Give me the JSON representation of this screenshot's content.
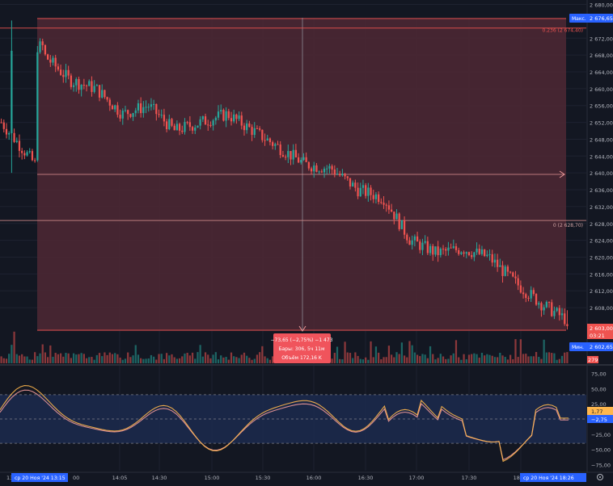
{
  "price_axis": {
    "ticks": [
      "2 680,00",
      "2 672,00",
      "2 668,00",
      "2 664,00",
      "2 660,00",
      "2 656,00",
      "2 652,00",
      "2 648,00",
      "2 644,00",
      "2 640,00",
      "2 636,00",
      "2 632,00",
      "2 628,00",
      "2 624,00",
      "2 620,00",
      "2 616,00",
      "2 612,00",
      "2 608,00"
    ],
    "tick_values": [
      2680,
      2672,
      2668,
      2664,
      2660,
      2656,
      2652,
      2648,
      2644,
      2640,
      2636,
      2632,
      2628,
      2624,
      2620,
      2616,
      2612,
      2608
    ],
    "ylim": [
      2602.65,
      2676.65
    ],
    "max_label": "Макс.",
    "max_value": "2 676,65",
    "min_label": "Мин.",
    "min_value": "2 602,65",
    "last_price": "2 603,00",
    "countdown": "03:21",
    "volume_badge": "279"
  },
  "fib_levels": [
    {
      "label": "0.236 (2 674,40)",
      "value": 2674.4
    },
    {
      "label": "0 (2 628,70)",
      "value": 2628.7
    }
  ],
  "measure_tooltip": {
    "line1": "−73,65 (−2,75%) −1 473",
    "line2": "Бары: 306, 5ч 11м",
    "line3": "Объём 172,16 K"
  },
  "oscillator_axis": {
    "ticks": [
      "75,00",
      "50,00",
      "25,00",
      "−25,00",
      "−50,00",
      "−75,00"
    ],
    "tick_values": [
      75,
      50,
      25,
      -25,
      -50,
      -75
    ],
    "ylim": [
      -85,
      85
    ],
    "band": [
      40,
      -40
    ],
    "value_a": "1,77",
    "value_b": "−2,75"
  },
  "time_axis": {
    "ticks": [
      "14:05",
      "14:30",
      "15:00",
      "15:30",
      "16:00",
      "16:30",
      "17:00",
      "17:30",
      "18:00"
    ],
    "start_label": "ср 20 Ноя '24   13:15",
    "end_label": "ср 20 Ноя '24   18:26",
    "left_fragment": "13",
    "partial_tick": "00"
  },
  "chart_data": {
    "type": "candlestick",
    "ylim": [
      2602.65,
      2676.65
    ],
    "x": [
      "13:15",
      "13:30",
      "13:45",
      "14:00",
      "14:15",
      "14:30",
      "14:45",
      "15:00",
      "15:15",
      "15:30",
      "15:45",
      "16:00",
      "16:15",
      "16:30",
      "16:45",
      "17:00",
      "17:15",
      "17:30",
      "17:45",
      "18:00",
      "18:15",
      "18:26"
    ],
    "close": [
      2640,
      2668,
      2662,
      2660,
      2654,
      2656,
      2650,
      2652,
      2654,
      2650,
      2646,
      2642,
      2641,
      2636,
      2634,
      2624,
      2621,
      2622,
      2620,
      2614,
      2609,
      2605
    ],
    "start_price": 2676.65,
    "end_price": 2603.0,
    "change": -73.65,
    "change_pct": -2.75,
    "bars": 306
  },
  "colors": {
    "background": "#131722",
    "measure_fill": "#4a2733",
    "up": "#26a69a",
    "down": "#ef5350",
    "blue_label": "#2962ff",
    "osc_band": "#1c2a4d",
    "osc_line_a": "#ffb74d",
    "osc_line_b": "#ef9a9a"
  }
}
